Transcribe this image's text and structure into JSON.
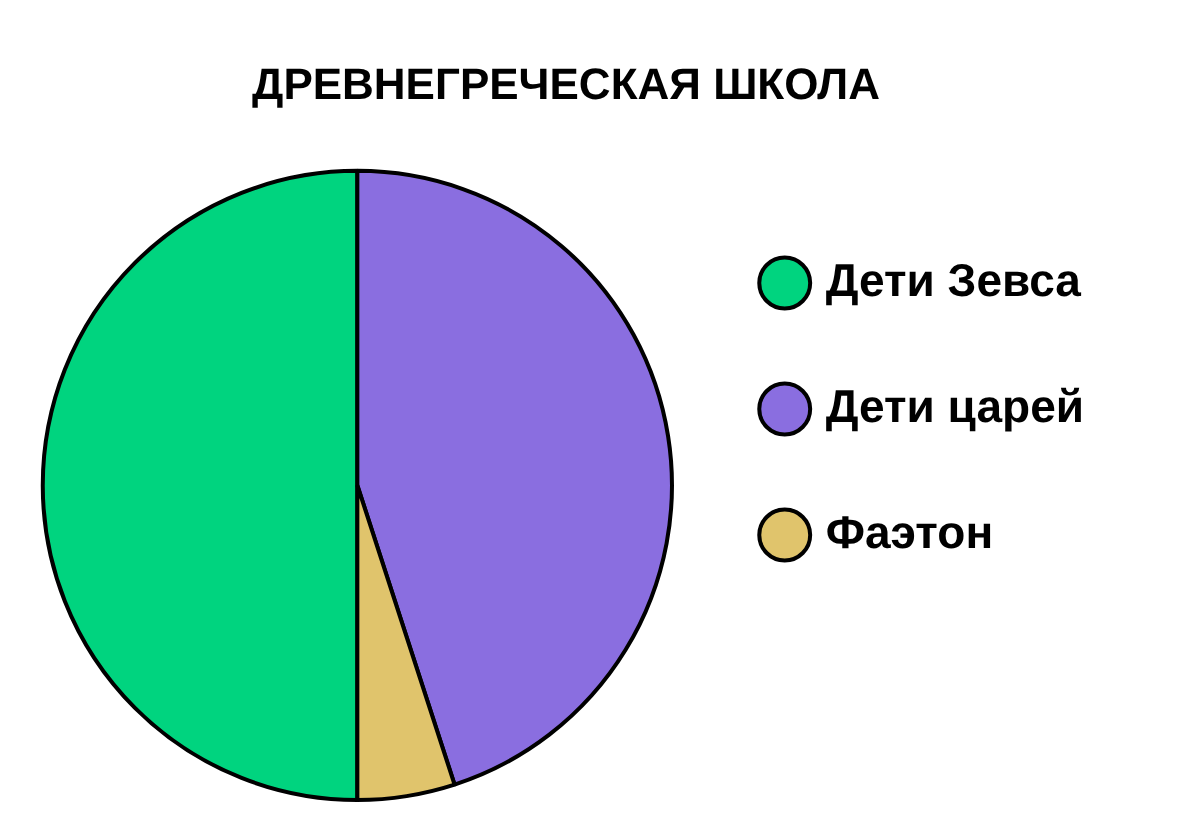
{
  "chart_data": {
    "type": "pie",
    "title": "ДРЕВНЕГРЕЧЕСКАЯ ШКОЛА",
    "categories": [
      "Дети Зевса",
      "Дети царей",
      "Фаэтон"
    ],
    "values": [
      50,
      45,
      5
    ],
    "colors": [
      "#00d47f",
      "#8a6ee0",
      "#e0c46c"
    ],
    "legend": "right"
  }
}
